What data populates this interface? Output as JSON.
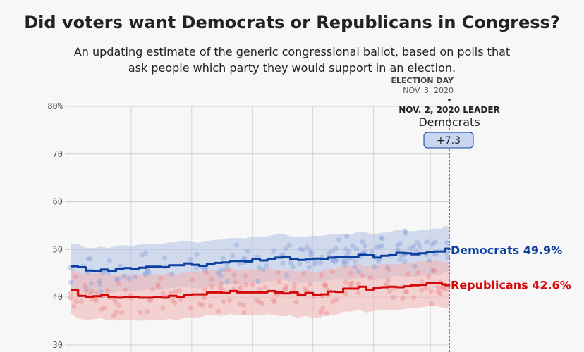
{
  "chart_data": {
    "type": "line",
    "title": "Did voters want Democrats or Republicans in Congress?",
    "subtitle": "An updating estimate of the generic congressional ballot, based on polls that ask people which party they would support in an election.",
    "ylim": [
      30,
      80
    ],
    "y_ticks": [
      {
        "value": 80,
        "label": "80%"
      },
      {
        "value": 70,
        "label": "70"
      },
      {
        "value": 60,
        "label": "60"
      },
      {
        "value": 50,
        "label": "50"
      },
      {
        "value": 40,
        "label": "40"
      },
      {
        "value": 30,
        "label": "30"
      }
    ],
    "x_range": [
      0,
      100
    ],
    "election_day": {
      "x": 100,
      "label": "ELECTION DAY",
      "date": "NOV. 3, 2020"
    },
    "leader_annotation": {
      "heading": "NOV. 2, 2020 LEADER",
      "party": "Democrats",
      "margin": "+7.3"
    },
    "series": [
      {
        "name": "Democrats",
        "end_label": "Democrats 49.9%",
        "color": "#0b3fa0",
        "band_color": "#b3c3e6",
        "dot_color": "#8aa4dc",
        "x": [
          0,
          2,
          4,
          6,
          8,
          10,
          12,
          14,
          16,
          18,
          20,
          22,
          24,
          26,
          28,
          30,
          32,
          34,
          36,
          38,
          40,
          42,
          44,
          46,
          48,
          50,
          52,
          54,
          56,
          58,
          60,
          62,
          64,
          66,
          68,
          70,
          72,
          74,
          76,
          78,
          80,
          82,
          84,
          86,
          88,
          90,
          92,
          94,
          96,
          98,
          99,
          100
        ],
        "values": [
          46.5,
          46.3,
          45.6,
          45.5,
          45.8,
          45.5,
          46.0,
          46.1,
          46.0,
          46.2,
          46.4,
          46.4,
          46.3,
          46.7,
          46.7,
          47.1,
          46.8,
          46.6,
          47.0,
          47.2,
          47.3,
          47.6,
          47.6,
          47.5,
          48.0,
          47.7,
          48.0,
          48.3,
          48.5,
          48.0,
          47.8,
          47.9,
          48.1,
          48.0,
          48.3,
          48.5,
          48.4,
          48.4,
          48.9,
          48.8,
          48.3,
          48.7,
          48.8,
          49.3,
          49.2,
          49.0,
          49.2,
          49.4,
          49.6,
          49.6,
          50.2,
          49.9
        ],
        "band_half_width": 4.8
      },
      {
        "name": "Republicans",
        "end_label": "Republicans 42.6%",
        "color": "#d40a0a",
        "band_color": "#f2b3b3",
        "dot_color": "#ec8b8b",
        "x": [
          0,
          2,
          4,
          6,
          8,
          10,
          12,
          14,
          16,
          18,
          20,
          22,
          24,
          26,
          28,
          30,
          32,
          34,
          36,
          38,
          40,
          42,
          44,
          46,
          48,
          50,
          52,
          54,
          56,
          58,
          60,
          62,
          64,
          66,
          68,
          70,
          72,
          74,
          76,
          78,
          80,
          82,
          84,
          86,
          88,
          90,
          92,
          94,
          96,
          98,
          99,
          100
        ],
        "values": [
          41.5,
          40.3,
          40.1,
          40.2,
          40.4,
          40.0,
          39.9,
          40.1,
          40.0,
          39.9,
          39.9,
          40.1,
          39.9,
          40.3,
          40.0,
          40.4,
          40.6,
          40.6,
          41.0,
          41.0,
          40.9,
          41.3,
          41.0,
          41.0,
          41.0,
          41.0,
          41.3,
          41.0,
          40.8,
          41.0,
          40.4,
          40.9,
          40.5,
          40.6,
          41.2,
          41.1,
          41.8,
          41.8,
          42.2,
          41.6,
          41.9,
          42.1,
          42.2,
          42.1,
          42.3,
          42.5,
          42.6,
          42.9,
          43.0,
          42.7,
          42.5,
          42.6
        ],
        "band_half_width": 4.8
      }
    ],
    "grid": true
  }
}
